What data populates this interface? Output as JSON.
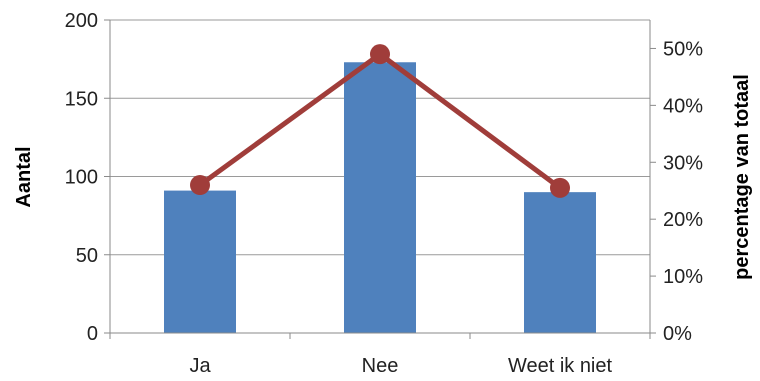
{
  "chart_data": {
    "type": "bar",
    "categories": [
      "Ja",
      "Nee",
      "Weet ik niet"
    ],
    "series": [
      {
        "values": [
          91,
          173,
          90
        ],
        "color": "#4f81bd",
        "axis": "left",
        "kind": "bar"
      },
      {
        "values": [
          0.26,
          0.49,
          0.255
        ],
        "color": "#a03d3a",
        "axis": "right",
        "kind": "line"
      }
    ],
    "ylabel": "Aantal",
    "ylim": [
      0,
      200
    ],
    "yticks": [
      "0",
      "50",
      "100",
      "150",
      "200"
    ],
    "y2label": "percentage van totaal",
    "y2lim": [
      0,
      0.55
    ],
    "y2ticks": [
      "0%",
      "10%",
      "20%",
      "30%",
      "40%",
      "50%"
    ],
    "grid": true,
    "legend": "none"
  }
}
